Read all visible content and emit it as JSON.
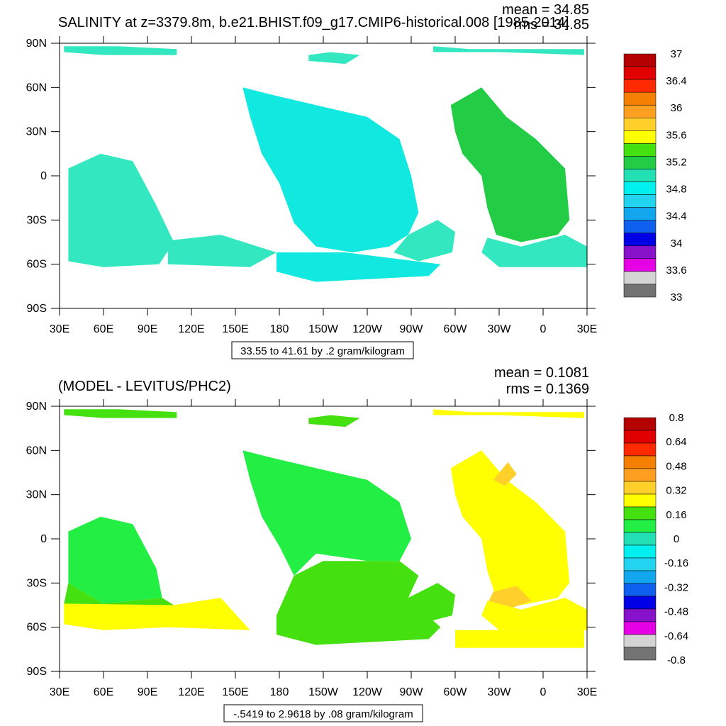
{
  "chart_data": [
    {
      "type": "heatmap",
      "title": "SALINITY at z=3379.8m, b.e21.BHIST.f09_g17.CMIP6-historical.008 [1985-2014]",
      "stats": {
        "mean": "mean = 34.85",
        "rms": "rms = 34.85"
      },
      "x_ticks": [
        "30E",
        "60E",
        "90E",
        "120E",
        "150E",
        "180",
        "150W",
        "120W",
        "90W",
        "60W",
        "30W",
        "0",
        "30E"
      ],
      "y_ticks": [
        "90N",
        "60N",
        "30N",
        "0",
        "30S",
        "60S",
        "90S"
      ],
      "range_note": "33.55 to 41.61 by .2 gram/kilogram",
      "colorbar": {
        "labels": [
          "37",
          "36.4",
          "36",
          "35.6",
          "35.2",
          "34.8",
          "34.4",
          "34",
          "33.6",
          "33"
        ],
        "colors": [
          "#b40000",
          "#e00000",
          "#ff2a00",
          "#f57f00",
          "#ff9f22",
          "#ffd02a",
          "#ffff00",
          "#44e010",
          "#22cc44",
          "#22e0b4",
          "#00f0f0",
          "#22d4f0",
          "#11a6ee",
          "#1060f0",
          "#0000e6",
          "#8811cc",
          "#e600e6",
          "#d4d4d4",
          "#737373"
        ]
      },
      "regions": [
        {
          "color": "#11e8e0",
          "points": [
            [
              155,
              60
            ],
            [
              175,
              55
            ],
            [
              205,
              48
            ],
            [
              240,
              40
            ],
            [
              262,
              25
            ],
            [
              270,
              0
            ],
            [
              275,
              -25
            ],
            [
              268,
              -40
            ],
            [
              255,
              -48
            ],
            [
              230,
              -52
            ],
            [
              205,
              -48
            ],
            [
              190,
              -32
            ],
            [
              180,
              -5
            ],
            [
              168,
              15
            ],
            [
              160,
              40
            ]
          ]
        },
        {
          "color": "#33e8c0",
          "points": [
            [
              36,
              5
            ],
            [
              58,
              15
            ],
            [
              80,
              10
            ],
            [
              96,
              -20
            ],
            [
              108,
              -45
            ],
            [
              98,
              -60
            ],
            [
              60,
              -62
            ],
            [
              36,
              -58
            ]
          ]
        },
        {
          "color": "#33e8c0",
          "points": [
            [
              104,
              -44
            ],
            [
              140,
              -40
            ],
            [
              178,
              -52
            ],
            [
              160,
              -62
            ],
            [
              104,
              -60
            ]
          ]
        },
        {
          "color": "#11e8e0",
          "points": [
            [
              178,
              -52
            ],
            [
              225,
              -52
            ],
            [
              290,
              -60
            ],
            [
              282,
              -68
            ],
            [
              205,
              -72
            ],
            [
              178,
              -65
            ]
          ]
        },
        {
          "color": "#33e8c0",
          "points": [
            [
              268,
              -40
            ],
            [
              288,
              -30
            ],
            [
              300,
              -38
            ],
            [
              298,
              -52
            ],
            [
              275,
              -58
            ],
            [
              258,
              -52
            ]
          ]
        },
        {
          "color": "#22cc44",
          "points": [
            [
              297,
              48
            ],
            [
              318,
              60
            ],
            [
              335,
              40
            ],
            [
              355,
              25
            ],
            [
              375,
              5
            ],
            [
              378,
              -30
            ],
            [
              370,
              -40
            ],
            [
              345,
              -45
            ],
            [
              328,
              -40
            ],
            [
              322,
              -22
            ],
            [
              318,
              0
            ],
            [
              305,
              15
            ],
            [
              300,
              30
            ]
          ]
        },
        {
          "color": "#33e8c0",
          "points": [
            [
              322,
              -42
            ],
            [
              345,
              -48
            ],
            [
              375,
              -40
            ],
            [
              390,
              -48
            ],
            [
              390,
              -62
            ],
            [
              330,
              -62
            ],
            [
              318,
              -52
            ]
          ]
        },
        {
          "color": "#33e8c0",
          "points": [
            [
              33,
              88
            ],
            [
              70,
              88
            ],
            [
              110,
              86
            ],
            [
              110,
              82
            ],
            [
              60,
              82
            ],
            [
              33,
              84
            ]
          ]
        },
        {
          "color": "#33e8c0",
          "points": [
            [
              200,
              78
            ],
            [
              225,
              76
            ],
            [
              235,
              82
            ],
            [
              215,
              84
            ],
            [
              200,
              82
            ]
          ]
        },
        {
          "color": "#33e8c0",
          "points": [
            [
              285,
              88
            ],
            [
              310,
              86
            ],
            [
              388,
              86
            ],
            [
              388,
              82
            ],
            [
              330,
              84
            ],
            [
              285,
              84
            ]
          ]
        }
      ]
    },
    {
      "type": "heatmap",
      "title": "(MODEL - LEVITUS/PHC2)",
      "stats": {
        "mean": "mean = 0.1081",
        "rms": "rms = 0.1369"
      },
      "x_ticks": [
        "30E",
        "60E",
        "90E",
        "120E",
        "150E",
        "180",
        "150W",
        "120W",
        "90W",
        "60W",
        "30W",
        "0",
        "30E"
      ],
      "y_ticks": [
        "90N",
        "60N",
        "30N",
        "0",
        "30S",
        "60S",
        "90S"
      ],
      "range_note": "-.5419 to 2.9618 by .08 gram/kilogram",
      "colorbar": {
        "labels": [
          "0.8",
          "0.64",
          "0.48",
          "0.32",
          "0.16",
          "0",
          "-0.16",
          "-0.32",
          "-0.48",
          "-0.64",
          "-0.8"
        ],
        "colors": [
          "#b40000",
          "#e00000",
          "#ff2a00",
          "#f57f00",
          "#ff9f22",
          "#ffd02a",
          "#ffff00",
          "#44e010",
          "#22ee44",
          "#22e0b4",
          "#00f0f0",
          "#22d4f0",
          "#11a6ee",
          "#1060f0",
          "#0000e6",
          "#8811cc",
          "#e600e6",
          "#d4d4d4",
          "#737373"
        ]
      },
      "regions": [
        {
          "color": "#22ee44",
          "points": [
            [
              155,
              60
            ],
            [
              175,
              55
            ],
            [
              205,
              48
            ],
            [
              240,
              40
            ],
            [
              262,
              25
            ],
            [
              270,
              0
            ],
            [
              262,
              -15
            ],
            [
              240,
              -15
            ],
            [
              205,
              -10
            ],
            [
              190,
              -25
            ],
            [
              180,
              -5
            ],
            [
              168,
              15
            ],
            [
              160,
              40
            ]
          ]
        },
        {
          "color": "#44e010",
          "points": [
            [
              190,
              -25
            ],
            [
              210,
              -15
            ],
            [
              262,
              -15
            ],
            [
              275,
              -25
            ],
            [
              268,
              -40
            ],
            [
              290,
              -60
            ],
            [
              282,
              -68
            ],
            [
              205,
              -72
            ],
            [
              178,
              -65
            ],
            [
              178,
              -52
            ]
          ]
        },
        {
          "color": "#22ee44",
          "points": [
            [
              36,
              5
            ],
            [
              58,
              15
            ],
            [
              80,
              10
            ],
            [
              96,
              -20
            ],
            [
              100,
              -40
            ],
            [
              60,
              -44
            ],
            [
              36,
              -30
            ]
          ]
        },
        {
          "color": "#44e010",
          "points": [
            [
              36,
              -30
            ],
            [
              60,
              -44
            ],
            [
              100,
              -40
            ],
            [
              108,
              -45
            ],
            [
              40,
              -48
            ],
            [
              33,
              -44
            ]
          ]
        },
        {
          "color": "#ffff00",
          "points": [
            [
              33,
              -44
            ],
            [
              108,
              -45
            ],
            [
              140,
              -40
            ],
            [
              160,
              -62
            ],
            [
              104,
              -60
            ],
            [
              60,
              -62
            ],
            [
              33,
              -58
            ]
          ]
        },
        {
          "color": "#44e010",
          "points": [
            [
              268,
              -40
            ],
            [
              288,
              -30
            ],
            [
              300,
              -38
            ],
            [
              298,
              -52
            ],
            [
              275,
              -58
            ],
            [
              258,
              -52
            ]
          ]
        },
        {
          "color": "#ffff00",
          "points": [
            [
              297,
              48
            ],
            [
              318,
              60
            ],
            [
              335,
              40
            ],
            [
              355,
              25
            ],
            [
              375,
              5
            ],
            [
              378,
              -30
            ],
            [
              370,
              -40
            ],
            [
              345,
              -45
            ],
            [
              328,
              -40
            ],
            [
              322,
              -22
            ],
            [
              318,
              0
            ],
            [
              305,
              15
            ],
            [
              300,
              30
            ]
          ]
        },
        {
          "color": "#ffd02a",
          "points": [
            [
              326,
              40
            ],
            [
              336,
              52
            ],
            [
              342,
              44
            ],
            [
              334,
              36
            ]
          ]
        },
        {
          "color": "#ffd02a",
          "points": [
            [
              326,
              -36
            ],
            [
              342,
              -32
            ],
            [
              352,
              -42
            ],
            [
              336,
              -48
            ],
            [
              322,
              -44
            ]
          ]
        },
        {
          "color": "#ffff00",
          "points": [
            [
              322,
              -42
            ],
            [
              345,
              -48
            ],
            [
              375,
              -40
            ],
            [
              390,
              -48
            ],
            [
              390,
              -62
            ],
            [
              330,
              -62
            ],
            [
              318,
              -52
            ]
          ]
        },
        {
          "color": "#ffff00",
          "points": [
            [
              300,
              -62
            ],
            [
              330,
              -62
            ],
            [
              388,
              -62
            ],
            [
              388,
              -74
            ],
            [
              300,
              -74
            ]
          ]
        },
        {
          "color": "#44e010",
          "points": [
            [
              33,
              88
            ],
            [
              70,
              88
            ],
            [
              110,
              86
            ],
            [
              110,
              82
            ],
            [
              60,
              82
            ],
            [
              33,
              84
            ]
          ]
        },
        {
          "color": "#44e010",
          "points": [
            [
              200,
              78
            ],
            [
              225,
              76
            ],
            [
              235,
              82
            ],
            [
              215,
              84
            ],
            [
              200,
              82
            ]
          ]
        },
        {
          "color": "#ffff00",
          "points": [
            [
              285,
              88
            ],
            [
              310,
              86
            ],
            [
              388,
              86
            ],
            [
              388,
              82
            ],
            [
              330,
              84
            ],
            [
              285,
              84
            ]
          ]
        }
      ]
    }
  ]
}
